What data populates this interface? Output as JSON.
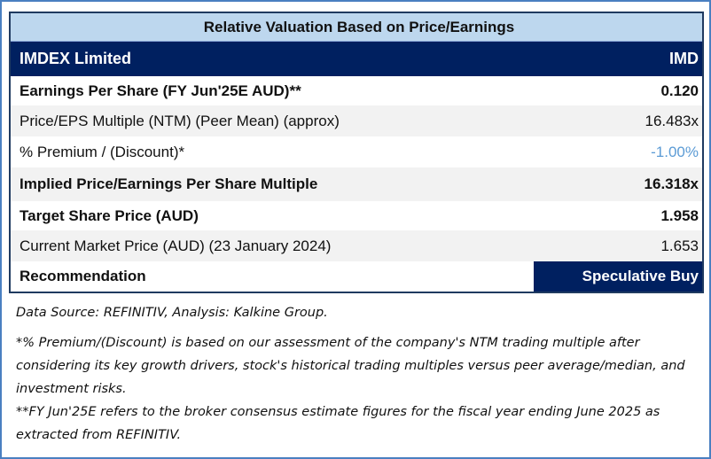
{
  "table": {
    "title": "Relative Valuation Based on Price/Earnings",
    "company": "IMDEX Limited",
    "ticker": "IMD",
    "rows": [
      {
        "label": "Earnings Per Share (FY Jun'25E AUD)**",
        "value": "0.120"
      },
      {
        "label": "Price/EPS Multiple (NTM) (Peer Mean) (approx)",
        "value": "16.483x"
      },
      {
        "label": "% Premium / (Discount)*",
        "value": "-1.00%"
      },
      {
        "label": "Implied Price/Earnings Per Share Multiple",
        "value": "16.318x"
      },
      {
        "label": "Target Share Price (AUD)",
        "value": "1.958"
      },
      {
        "label": "Current Market Price (AUD) (23 January 2024)",
        "value": "1.653"
      },
      {
        "label": "Recommendation",
        "value": "Speculative Buy"
      }
    ]
  },
  "notes": {
    "source": "Data Source: REFINITIV, Analysis: Kalkine Group.",
    "premium_note": "*% Premium/(Discount) is based on our assessment of the company's NTM trading multiple after considering its key growth drivers, stock's historical trading multiples versus peer average/median, and investment risks.",
    "fy_note": "**FY Jun'25E refers to the broker consensus estimate figures for the fiscal year ending June 2025 as extracted from REFINITIV."
  },
  "colors": {
    "navy": "#002060",
    "header": "#bdd7ee",
    "negative": "#5b9bd5"
  }
}
